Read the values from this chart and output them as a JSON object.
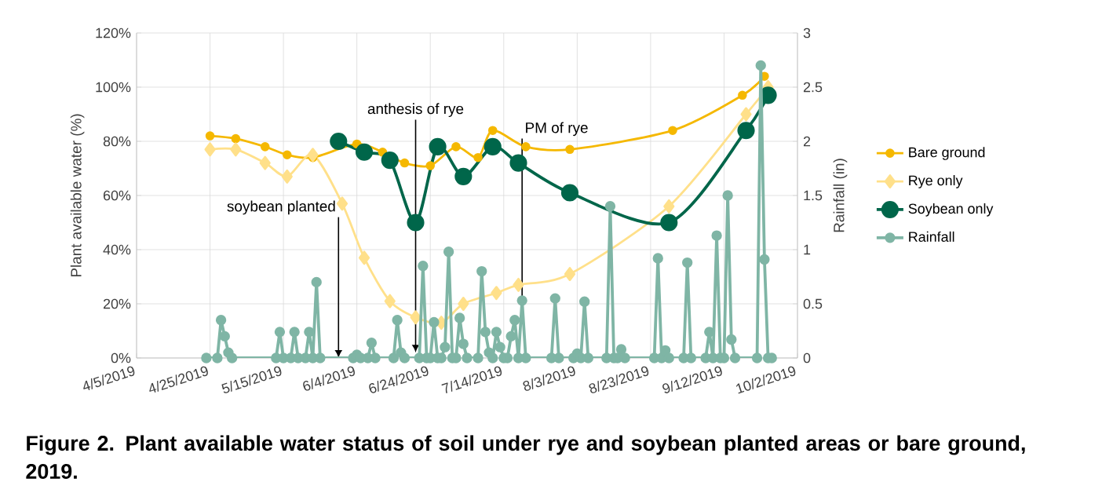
{
  "chart_data": {
    "type": "line",
    "title": "Figure 2. Plant available water status of soil under rye and soybean planted areas or bare ground, 2019.",
    "ylabel": "Plant available water (%)",
    "y2label": "Rainfall (in)",
    "xlim": [
      "2019-04-05",
      "2019-10-02"
    ],
    "xticks": [
      {
        "value": "2019-04-05",
        "label": "4/5/2019"
      },
      {
        "value": "2019-04-25",
        "label": "4/25/2019"
      },
      {
        "value": "2019-05-15",
        "label": "5/15/2019"
      },
      {
        "value": "2019-06-04",
        "label": "6/4/2019"
      },
      {
        "value": "2019-06-24",
        "label": "6/24/2019"
      },
      {
        "value": "2019-07-14",
        "label": "7/14/2019"
      },
      {
        "value": "2019-08-03",
        "label": "8/3/2019"
      },
      {
        "value": "2019-08-23",
        "label": "8/23/2019"
      },
      {
        "value": "2019-09-12",
        "label": "9/12/2019"
      },
      {
        "value": "2019-10-02",
        "label": "10/2/2019"
      }
    ],
    "ylim": [
      0,
      120
    ],
    "yticks": [
      {
        "value": 0,
        "label": "0%"
      },
      {
        "value": 20,
        "label": "20%"
      },
      {
        "value": 40,
        "label": "40%"
      },
      {
        "value": 60,
        "label": "60%"
      },
      {
        "value": 80,
        "label": "80%"
      },
      {
        "value": 100,
        "label": "100%"
      },
      {
        "value": 120,
        "label": "120%"
      }
    ],
    "y2lim": [
      0,
      3
    ],
    "y2ticks": [
      0,
      0.5,
      1,
      1.5,
      2,
      2.5,
      3
    ],
    "grid": true,
    "legend": "right",
    "series": [
      {
        "name": "Bare ground",
        "color": "#f5b800",
        "marker": "circle",
        "x": [
          "2019-04-25",
          "2019-05-02",
          "2019-05-10",
          "2019-05-16",
          "2019-05-23",
          "2019-06-04",
          "2019-06-11",
          "2019-06-17",
          "2019-06-24",
          "2019-07-01",
          "2019-07-07",
          "2019-07-11",
          "2019-07-20",
          "2019-08-01",
          "2019-08-29",
          "2019-09-17",
          "2019-09-23"
        ],
        "values": [
          82,
          81,
          78,
          75,
          74,
          79,
          76,
          72,
          71,
          78,
          74,
          84,
          78,
          77,
          84,
          97,
          104
        ]
      },
      {
        "name": "Rye only",
        "color": "#ffe08a",
        "marker": "diamond",
        "x": [
          "2019-04-25",
          "2019-05-02",
          "2019-05-10",
          "2019-05-16",
          "2019-05-23",
          "2019-05-31",
          "2019-06-06",
          "2019-06-13",
          "2019-06-20",
          "2019-06-27",
          "2019-07-03",
          "2019-07-12",
          "2019-07-18",
          "2019-08-01",
          "2019-08-28",
          "2019-09-18",
          "2019-09-24"
        ],
        "values": [
          77,
          77,
          72,
          67,
          75,
          57,
          37,
          21,
          15,
          13,
          20,
          24,
          27,
          31,
          56,
          90,
          100
        ]
      },
      {
        "name": "Soybean only",
        "color": "#00664a",
        "marker": "circle",
        "x": [
          "2019-05-30",
          "2019-06-06",
          "2019-06-13",
          "2019-06-20",
          "2019-06-26",
          "2019-07-03",
          "2019-07-11",
          "2019-07-18",
          "2019-08-01",
          "2019-08-28",
          "2019-09-18",
          "2019-09-24"
        ],
        "values": [
          80,
          76,
          73,
          50,
          78,
          67,
          78,
          72,
          61,
          50,
          84,
          97
        ]
      },
      {
        "name": "Rainfall",
        "color": "#7fb5a5",
        "marker": "circle",
        "axis": "y2",
        "x": [
          "2019-04-24",
          "2019-04-27",
          "2019-04-28",
          "2019-04-29",
          "2019-04-30",
          "2019-05-01",
          "2019-05-13",
          "2019-05-14",
          "2019-05-15",
          "2019-05-17",
          "2019-05-18",
          "2019-05-19",
          "2019-05-21",
          "2019-05-22",
          "2019-05-23",
          "2019-05-24",
          "2019-05-25",
          "2019-06-03",
          "2019-06-04",
          "2019-06-05",
          "2019-06-07",
          "2019-06-08",
          "2019-06-09",
          "2019-06-14",
          "2019-06-15",
          "2019-06-16",
          "2019-06-17",
          "2019-06-21",
          "2019-06-22",
          "2019-06-23",
          "2019-06-24",
          "2019-06-25",
          "2019-06-26",
          "2019-06-27",
          "2019-06-28",
          "2019-06-29",
          "2019-06-30",
          "2019-07-01",
          "2019-07-02",
          "2019-07-03",
          "2019-07-04",
          "2019-07-07",
          "2019-07-08",
          "2019-07-09",
          "2019-07-10",
          "2019-07-11",
          "2019-07-12",
          "2019-07-13",
          "2019-07-14",
          "2019-07-15",
          "2019-07-16",
          "2019-07-17",
          "2019-07-18",
          "2019-07-19",
          "2019-07-20",
          "2019-07-27",
          "2019-07-28",
          "2019-07-29",
          "2019-08-02",
          "2019-08-03",
          "2019-08-04",
          "2019-08-05",
          "2019-08-06",
          "2019-08-11",
          "2019-08-12",
          "2019-08-13",
          "2019-08-14",
          "2019-08-15",
          "2019-08-16",
          "2019-08-24",
          "2019-08-25",
          "2019-08-26",
          "2019-08-27",
          "2019-08-28",
          "2019-09-01",
          "2019-09-02",
          "2019-09-03",
          "2019-09-07",
          "2019-09-08",
          "2019-09-09",
          "2019-09-10",
          "2019-09-11",
          "2019-09-12",
          "2019-09-13",
          "2019-09-14",
          "2019-09-15",
          "2019-09-21",
          "2019-09-22",
          "2019-09-23",
          "2019-09-24",
          "2019-09-25"
        ],
        "values": [
          0,
          0,
          0.35,
          0.2,
          0.05,
          0,
          0,
          0.24,
          0,
          0,
          0.24,
          0,
          0,
          0.24,
          0,
          0.7,
          0,
          0,
          0.03,
          0,
          0,
          0.14,
          0,
          0,
          0.35,
          0.05,
          0,
          0,
          0.85,
          0,
          0,
          0.33,
          0,
          0,
          0.1,
          0.98,
          0,
          0,
          0.37,
          0.13,
          0,
          0,
          0.8,
          0.24,
          0.05,
          0,
          0.24,
          0.1,
          0,
          0,
          0.2,
          0.35,
          0,
          0.53,
          0,
          0,
          0.55,
          0,
          0,
          0.04,
          0,
          0.52,
          0,
          0,
          1.4,
          0,
          0,
          0.08,
          0,
          0,
          0.92,
          0,
          0.07,
          0,
          0,
          0.88,
          0,
          0,
          0.24,
          0,
          1.13,
          0,
          0,
          1.5,
          0.17,
          0,
          0,
          2.7,
          0.91,
          0,
          0
        ]
      }
    ],
    "annotations": [
      {
        "text": "soybean planted",
        "x": "2019-05-30",
        "y": 0
      },
      {
        "text": "anthesis of rye",
        "x": "2019-06-20",
        "y": 2
      },
      {
        "text": "PM of rye",
        "x": "2019-07-19",
        "y": 19
      }
    ]
  }
}
